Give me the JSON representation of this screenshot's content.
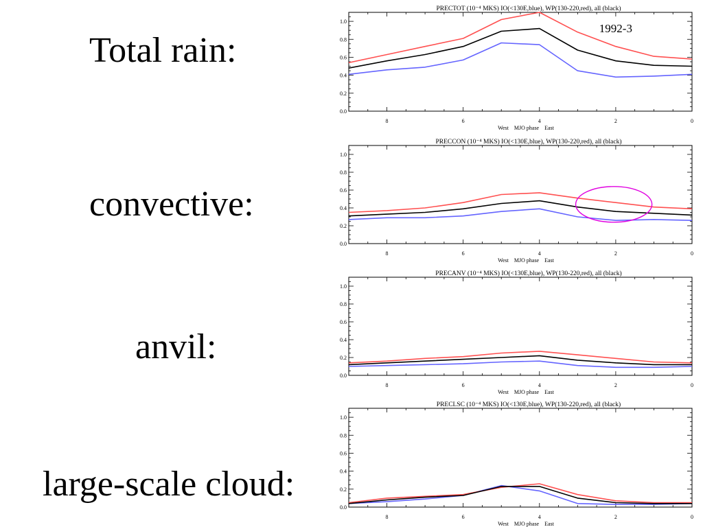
{
  "labels": {
    "total": "Total rain:",
    "convective": "convective:",
    "anvil": "anvil:",
    "large_scale": "large-scale cloud:"
  },
  "colors": {
    "blue": "#6464ff",
    "red": "#ff5050",
    "black": "#000000",
    "highlight": "#e000e0"
  },
  "chart_data": [
    {
      "type": "line",
      "title": "PRECTOT (10⁻⁴ MKS) IO(<130E,blue), WP(130-220,red), all (black)",
      "xlabel": "West    MJO phase    East",
      "x_reversed": true,
      "xlim": [
        0,
        9
      ],
      "ylim": [
        0,
        1.1
      ],
      "xticks": [
        8,
        6,
        4,
        2,
        0
      ],
      "yticks": [
        "0.0",
        "0.2",
        "0.4",
        "0.6",
        "0.8",
        "1.0"
      ],
      "annotation": "1992-3",
      "x": [
        9,
        8,
        7,
        6,
        5,
        4,
        3,
        2,
        1,
        0
      ],
      "series": [
        {
          "color": "blue",
          "values": [
            0.41,
            0.46,
            0.49,
            0.57,
            0.76,
            0.74,
            0.45,
            0.38,
            0.39,
            0.41
          ]
        },
        {
          "color": "red",
          "values": [
            0.54,
            0.63,
            0.72,
            0.81,
            1.02,
            1.1,
            0.88,
            0.72,
            0.61,
            0.58
          ]
        },
        {
          "color": "black",
          "values": [
            0.48,
            0.56,
            0.63,
            0.72,
            0.89,
            0.92,
            0.68,
            0.56,
            0.51,
            0.5
          ]
        }
      ]
    },
    {
      "type": "line",
      "title": "PRECCON (10⁻⁴ MKS) IO(<130E,blue), WP(130-220,red), all (black)",
      "xlabel": "West    MJO phase    East",
      "x_reversed": true,
      "xlim": [
        0,
        9
      ],
      "ylim": [
        0,
        1.1
      ],
      "xticks": [
        8,
        6,
        4,
        2,
        0
      ],
      "yticks": [
        "0.0",
        "0.2",
        "0.4",
        "0.6",
        "0.8",
        "1.0"
      ],
      "highlight_ellipse": {
        "x_center": 2.05,
        "y_center": 0.44,
        "x_radius": 1.0,
        "y_radius": 0.2
      },
      "x": [
        9,
        8,
        7,
        6,
        5,
        4,
        3,
        2,
        1,
        0
      ],
      "series": [
        {
          "color": "blue",
          "values": [
            0.27,
            0.29,
            0.29,
            0.31,
            0.36,
            0.39,
            0.3,
            0.26,
            0.27,
            0.26
          ]
        },
        {
          "color": "red",
          "values": [
            0.35,
            0.37,
            0.4,
            0.46,
            0.55,
            0.57,
            0.51,
            0.46,
            0.41,
            0.39
          ]
        },
        {
          "color": "black",
          "values": [
            0.31,
            0.33,
            0.35,
            0.39,
            0.45,
            0.48,
            0.41,
            0.36,
            0.34,
            0.32
          ]
        }
      ]
    },
    {
      "type": "line",
      "title": "PRECANV (10⁻⁴ MKS) IO(<130E,blue), WP(130-220,red), all (black)",
      "xlabel": "West    MJO phase    East",
      "x_reversed": true,
      "xlim": [
        0,
        9
      ],
      "ylim": [
        0,
        1.1
      ],
      "xticks": [
        8,
        6,
        4,
        2,
        0
      ],
      "yticks": [
        "0.0",
        "0.2",
        "0.4",
        "0.6",
        "0.8",
        "1.0"
      ],
      "x": [
        9,
        8,
        7,
        6,
        5,
        4,
        3,
        2,
        1,
        0
      ],
      "series": [
        {
          "color": "blue",
          "values": [
            0.1,
            0.11,
            0.12,
            0.13,
            0.15,
            0.16,
            0.11,
            0.09,
            0.09,
            0.1
          ]
        },
        {
          "color": "red",
          "values": [
            0.14,
            0.16,
            0.19,
            0.21,
            0.25,
            0.27,
            0.23,
            0.19,
            0.15,
            0.14
          ]
        },
        {
          "color": "black",
          "values": [
            0.12,
            0.14,
            0.16,
            0.18,
            0.2,
            0.22,
            0.17,
            0.14,
            0.12,
            0.12
          ]
        }
      ]
    },
    {
      "type": "line",
      "title": "PRECLSC (10⁻⁴ MKS) IO(<130E,blue), WP(130-220,red), all (black)",
      "xlabel": "West    MJO phase    East",
      "x_reversed": true,
      "xlim": [
        0,
        9
      ],
      "ylim": [
        0,
        1.1
      ],
      "xticks": [
        8,
        6,
        4,
        2,
        0
      ],
      "yticks": [
        "0.0",
        "0.2",
        "0.4",
        "0.6",
        "0.8",
        "1.0"
      ],
      "x": [
        9,
        8,
        7,
        6,
        5,
        4,
        3,
        2,
        1,
        0
      ],
      "series": [
        {
          "color": "blue",
          "values": [
            0.04,
            0.06,
            0.09,
            0.13,
            0.24,
            0.18,
            0.04,
            0.03,
            0.03,
            0.04
          ]
        },
        {
          "color": "red",
          "values": [
            0.05,
            0.1,
            0.12,
            0.14,
            0.22,
            0.26,
            0.14,
            0.07,
            0.05,
            0.05
          ]
        },
        {
          "color": "black",
          "values": [
            0.04,
            0.08,
            0.11,
            0.13,
            0.23,
            0.23,
            0.1,
            0.05,
            0.04,
            0.04
          ]
        }
      ]
    }
  ]
}
